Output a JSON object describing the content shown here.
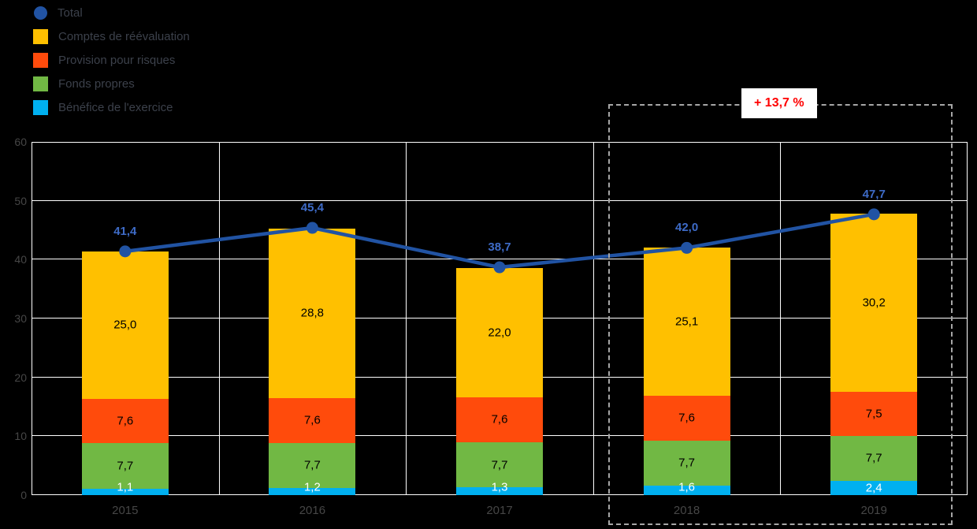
{
  "legend": {
    "items": [
      {
        "label": "Total",
        "marker": "circle",
        "color": "#2153A3"
      },
      {
        "label": "Comptes de réévaluation",
        "marker": "square",
        "color": "#FFC000"
      },
      {
        "label": "Provision pour risques",
        "marker": "square",
        "color": "#FF4B0C"
      },
      {
        "label": "Fonds propres",
        "marker": "square",
        "color": "#71B844"
      },
      {
        "label": "Bénéfice de l'exercice",
        "marker": "square",
        "color": "#00B0F0"
      }
    ]
  },
  "chart_data": {
    "type": "combo_stacked_bar_line",
    "categories": [
      "2015",
      "2016",
      "2017",
      "2018",
      "2019"
    ],
    "series": [
      {
        "name": "Bénéfice de l'exercice",
        "color": "#00B0F0",
        "label_color": "#FFFFFF",
        "values": [
          1.1,
          1.2,
          1.3,
          1.6,
          2.4
        ]
      },
      {
        "name": "Fonds propres",
        "color": "#71B844",
        "label_color": "#000000",
        "values": [
          7.7,
          7.7,
          7.7,
          7.7,
          7.7
        ]
      },
      {
        "name": "Provision pour risques",
        "color": "#FF4B0C",
        "label_color": "#000000",
        "values": [
          7.6,
          7.6,
          7.6,
          7.6,
          7.5
        ]
      },
      {
        "name": "Comptes de réévaluation",
        "color": "#FFC000",
        "label_color": "#000000",
        "values": [
          25.0,
          28.8,
          22.0,
          25.1,
          30.2
        ]
      }
    ],
    "line_series": {
      "name": "Total",
      "color": "#2153A3",
      "label_color": "#3E6BC7",
      "values": [
        41.4,
        45.4,
        38.7,
        42.0,
        47.7
      ]
    },
    "ylim": [
      0,
      60
    ],
    "yticks": [
      "0",
      "10",
      "20",
      "30",
      "40",
      "50",
      "60"
    ],
    "grid": true,
    "legend_position": "top-left",
    "highlight": {
      "categories": [
        "2018",
        "2019"
      ],
      "label": "+ 13,7 %"
    }
  }
}
